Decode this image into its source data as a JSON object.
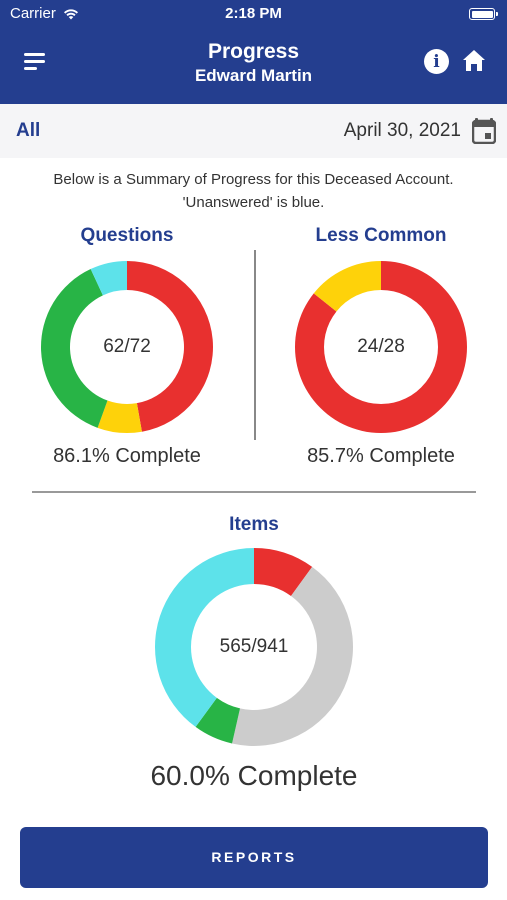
{
  "status_bar": {
    "carrier": "Carrier",
    "time": "2:18 PM",
    "icons": [
      "wifi-icon",
      "battery-icon"
    ]
  },
  "header": {
    "title": "Progress",
    "subtitle": "Edward Martin",
    "icons": [
      "menu-icon",
      "info-icon",
      "home-icon"
    ],
    "background": "#243e8f"
  },
  "filter": {
    "scope_label": "All",
    "date": "April 30, 2021",
    "icon": "calendar-icon"
  },
  "summary": {
    "line1": "Below is a Summary of Progress for this Deceased Account.",
    "line2": "'Unanswered' is blue."
  },
  "colors": {
    "answered": "#28b446",
    "incomplete": "#e8302f",
    "partial": "#fed20a",
    "unanswered": "#5de2ea",
    "other": "#cccccc",
    "title": "#243e8f"
  },
  "chart_data": [
    {
      "type": "pie",
      "title": "Questions",
      "center_label": "62/72",
      "complete_label": "86.1% Complete",
      "slices": [
        {
          "color": "#e8302f",
          "value": 34
        },
        {
          "color": "#fed20a",
          "value": 6
        },
        {
          "color": "#28b446",
          "value": 27
        },
        {
          "color": "#5de2ea",
          "value": 5
        }
      ]
    },
    {
      "type": "pie",
      "title": "Less Common",
      "center_label": "24/28",
      "complete_label": "85.7% Complete",
      "slices": [
        {
          "color": "#e8302f",
          "value": 24
        },
        {
          "color": "#fed20a",
          "value": 4
        }
      ]
    },
    {
      "type": "pie",
      "title": "Items",
      "center_label": "565/941",
      "complete_label": "60.0% Complete",
      "slices": [
        {
          "color": "#e8302f",
          "value": 94
        },
        {
          "color": "#cccccc",
          "value": 410
        },
        {
          "color": "#28b446",
          "value": 61
        },
        {
          "color": "#5de2ea",
          "value": 376
        }
      ]
    }
  ],
  "actions": {
    "reports_label": "REPORTS"
  }
}
